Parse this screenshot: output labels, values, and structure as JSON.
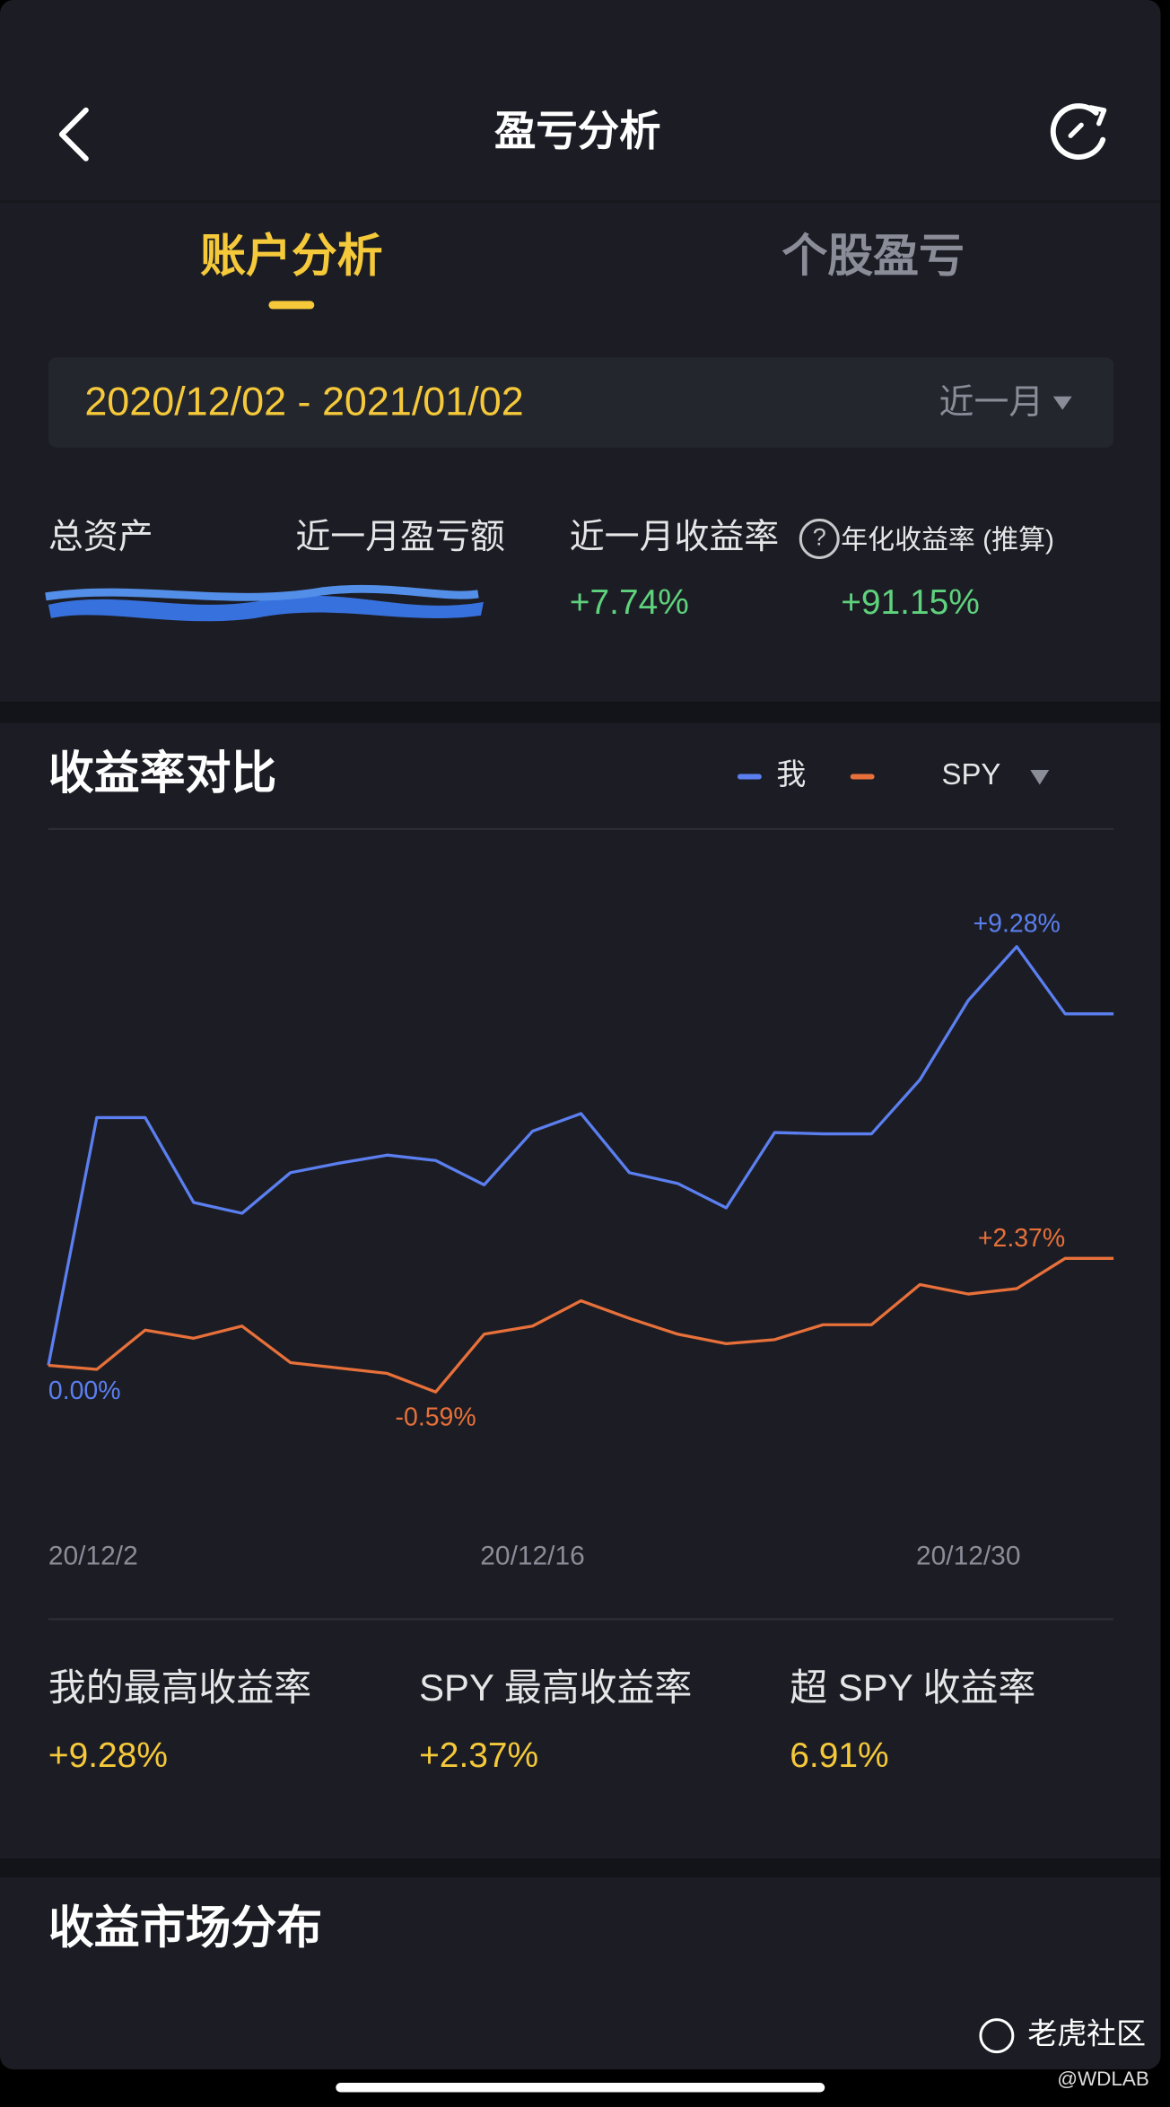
{
  "header": {
    "title": "盈亏分析"
  },
  "tabs": [
    "账户分析",
    "个股盈亏"
  ],
  "date_range": {
    "text": "2020/12/02 - 2021/01/02",
    "period": "近一月"
  },
  "summary": {
    "labels": [
      "总资产",
      "近一月盈亏额",
      "近一月收益率",
      "年化收益率 (推算)"
    ],
    "help": "?",
    "values": [
      "+7.74%",
      "+91.15%"
    ]
  },
  "sections": [
    "收益率对比",
    "收益市场分布"
  ],
  "chart_data": {
    "type": "line",
    "categories": [
      "20/12/2",
      null,
      null,
      null,
      null,
      null,
      null,
      null,
      null,
      null,
      "20/12/16",
      null,
      null,
      null,
      null,
      null,
      null,
      null,
      null,
      "20/12/30",
      null,
      null,
      null
    ],
    "series": [
      {
        "name": "我",
        "color": "#5b7ff0",
        "values": [
          0,
          5.49,
          5.49,
          3.61,
          3.37,
          4.27,
          4.48,
          4.66,
          4.54,
          4.0,
          5.19,
          5.58,
          4.27,
          4.03,
          3.49,
          5.16,
          5.13,
          5.13,
          6.33,
          8.09,
          9.28,
          7.79,
          7.79
        ],
        "value_labels": [
          "0.00%",
          null,
          null,
          null,
          null,
          null,
          null,
          null,
          null,
          null,
          null,
          null,
          null,
          null,
          null,
          null,
          null,
          null,
          null,
          null,
          "+9.28%",
          null,
          null
        ]
      },
      {
        "name": "SPY",
        "color": "#e8703a",
        "values": [
          0,
          -0.09,
          0.78,
          0.6,
          0.87,
          0.06,
          -0.06,
          -0.18,
          -0.59,
          0.69,
          0.87,
          1.43,
          1.04,
          0.69,
          0.48,
          0.57,
          0.9,
          0.9,
          1.79,
          1.58,
          1.7,
          2.37,
          2.37
        ],
        "value_labels": [
          null,
          null,
          null,
          null,
          null,
          null,
          null,
          null,
          "-0.59%",
          null,
          null,
          null,
          null,
          null,
          null,
          null,
          null,
          null,
          null,
          null,
          null,
          "+2.37%",
          null
        ]
      }
    ],
    "ylim": [
      -2.5,
      11.2
    ],
    "grid": false
  },
  "stats": [
    {
      "label": "我的最高收益率",
      "value": "+9.28%"
    },
    {
      "label": "SPY 最高收益率",
      "value": "+2.37%"
    },
    {
      "label": "超 SPY 收益率",
      "value": "6.91%"
    }
  ],
  "watermark": {
    "brand": "老虎社区",
    "author": "@WDLAB"
  }
}
